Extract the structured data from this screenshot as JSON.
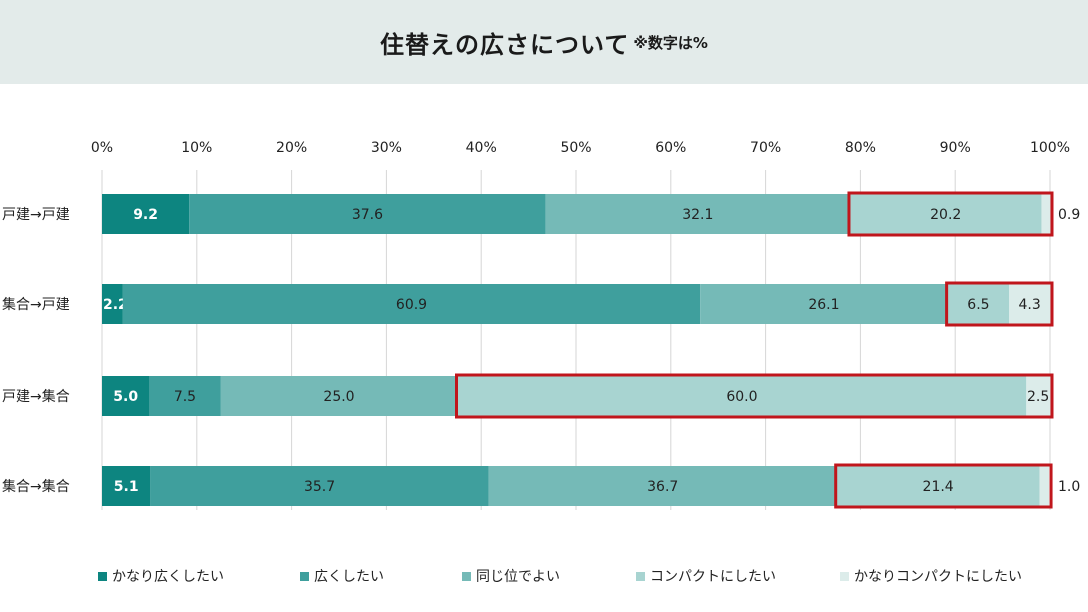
{
  "title": "住替えの広さについて",
  "title_note": "※数字は%",
  "chart_data": {
    "type": "bar",
    "orientation": "horizontal",
    "stacked": true,
    "xlim": [
      0,
      100
    ],
    "x_ticks": [
      "0%",
      "10%",
      "20%",
      "30%",
      "40%",
      "50%",
      "60%",
      "70%",
      "80%",
      "90%",
      "100%"
    ],
    "grid": true,
    "legend_position": "bottom",
    "categories": [
      "戸建→戸建",
      "集合→戸建",
      "戸建→集合",
      "集合→集合"
    ],
    "series": [
      {
        "name": "かなり広くしたい",
        "color": "#0d8580",
        "label_color": "#ffffff",
        "label_bold": true,
        "values": [
          9.2,
          2.2,
          5.0,
          5.1
        ],
        "labels": [
          "9.2",
          "2.2",
          "5.0",
          "5.1"
        ]
      },
      {
        "name": "広くしたい",
        "color": "#3f9f9d",
        "values": [
          37.6,
          60.9,
          7.5,
          35.7
        ],
        "labels": [
          "37.6",
          "60.9",
          "7.5",
          "35.7"
        ]
      },
      {
        "name": "同じ位でよい",
        "color": "#75bab7",
        "values": [
          32.1,
          26.1,
          25.0,
          36.7
        ],
        "labels": [
          "32.1",
          "26.1",
          "25.0",
          "36.7"
        ]
      },
      {
        "name": "コンパクトにしたい",
        "color": "#a8d4d1",
        "values": [
          20.2,
          6.5,
          60.0,
          21.4
        ],
        "labels": [
          "20.2",
          "6.5",
          "60.0",
          "21.4"
        ]
      },
      {
        "name": "かなりコンパクトにしたい",
        "color": "#dcecea",
        "values": [
          0.9,
          4.3,
          2.5,
          1.0
        ],
        "labels": [
          "0.9",
          "4.3",
          "2.5",
          "1.0"
        ]
      }
    ],
    "highlight_color": "#c0161c"
  }
}
